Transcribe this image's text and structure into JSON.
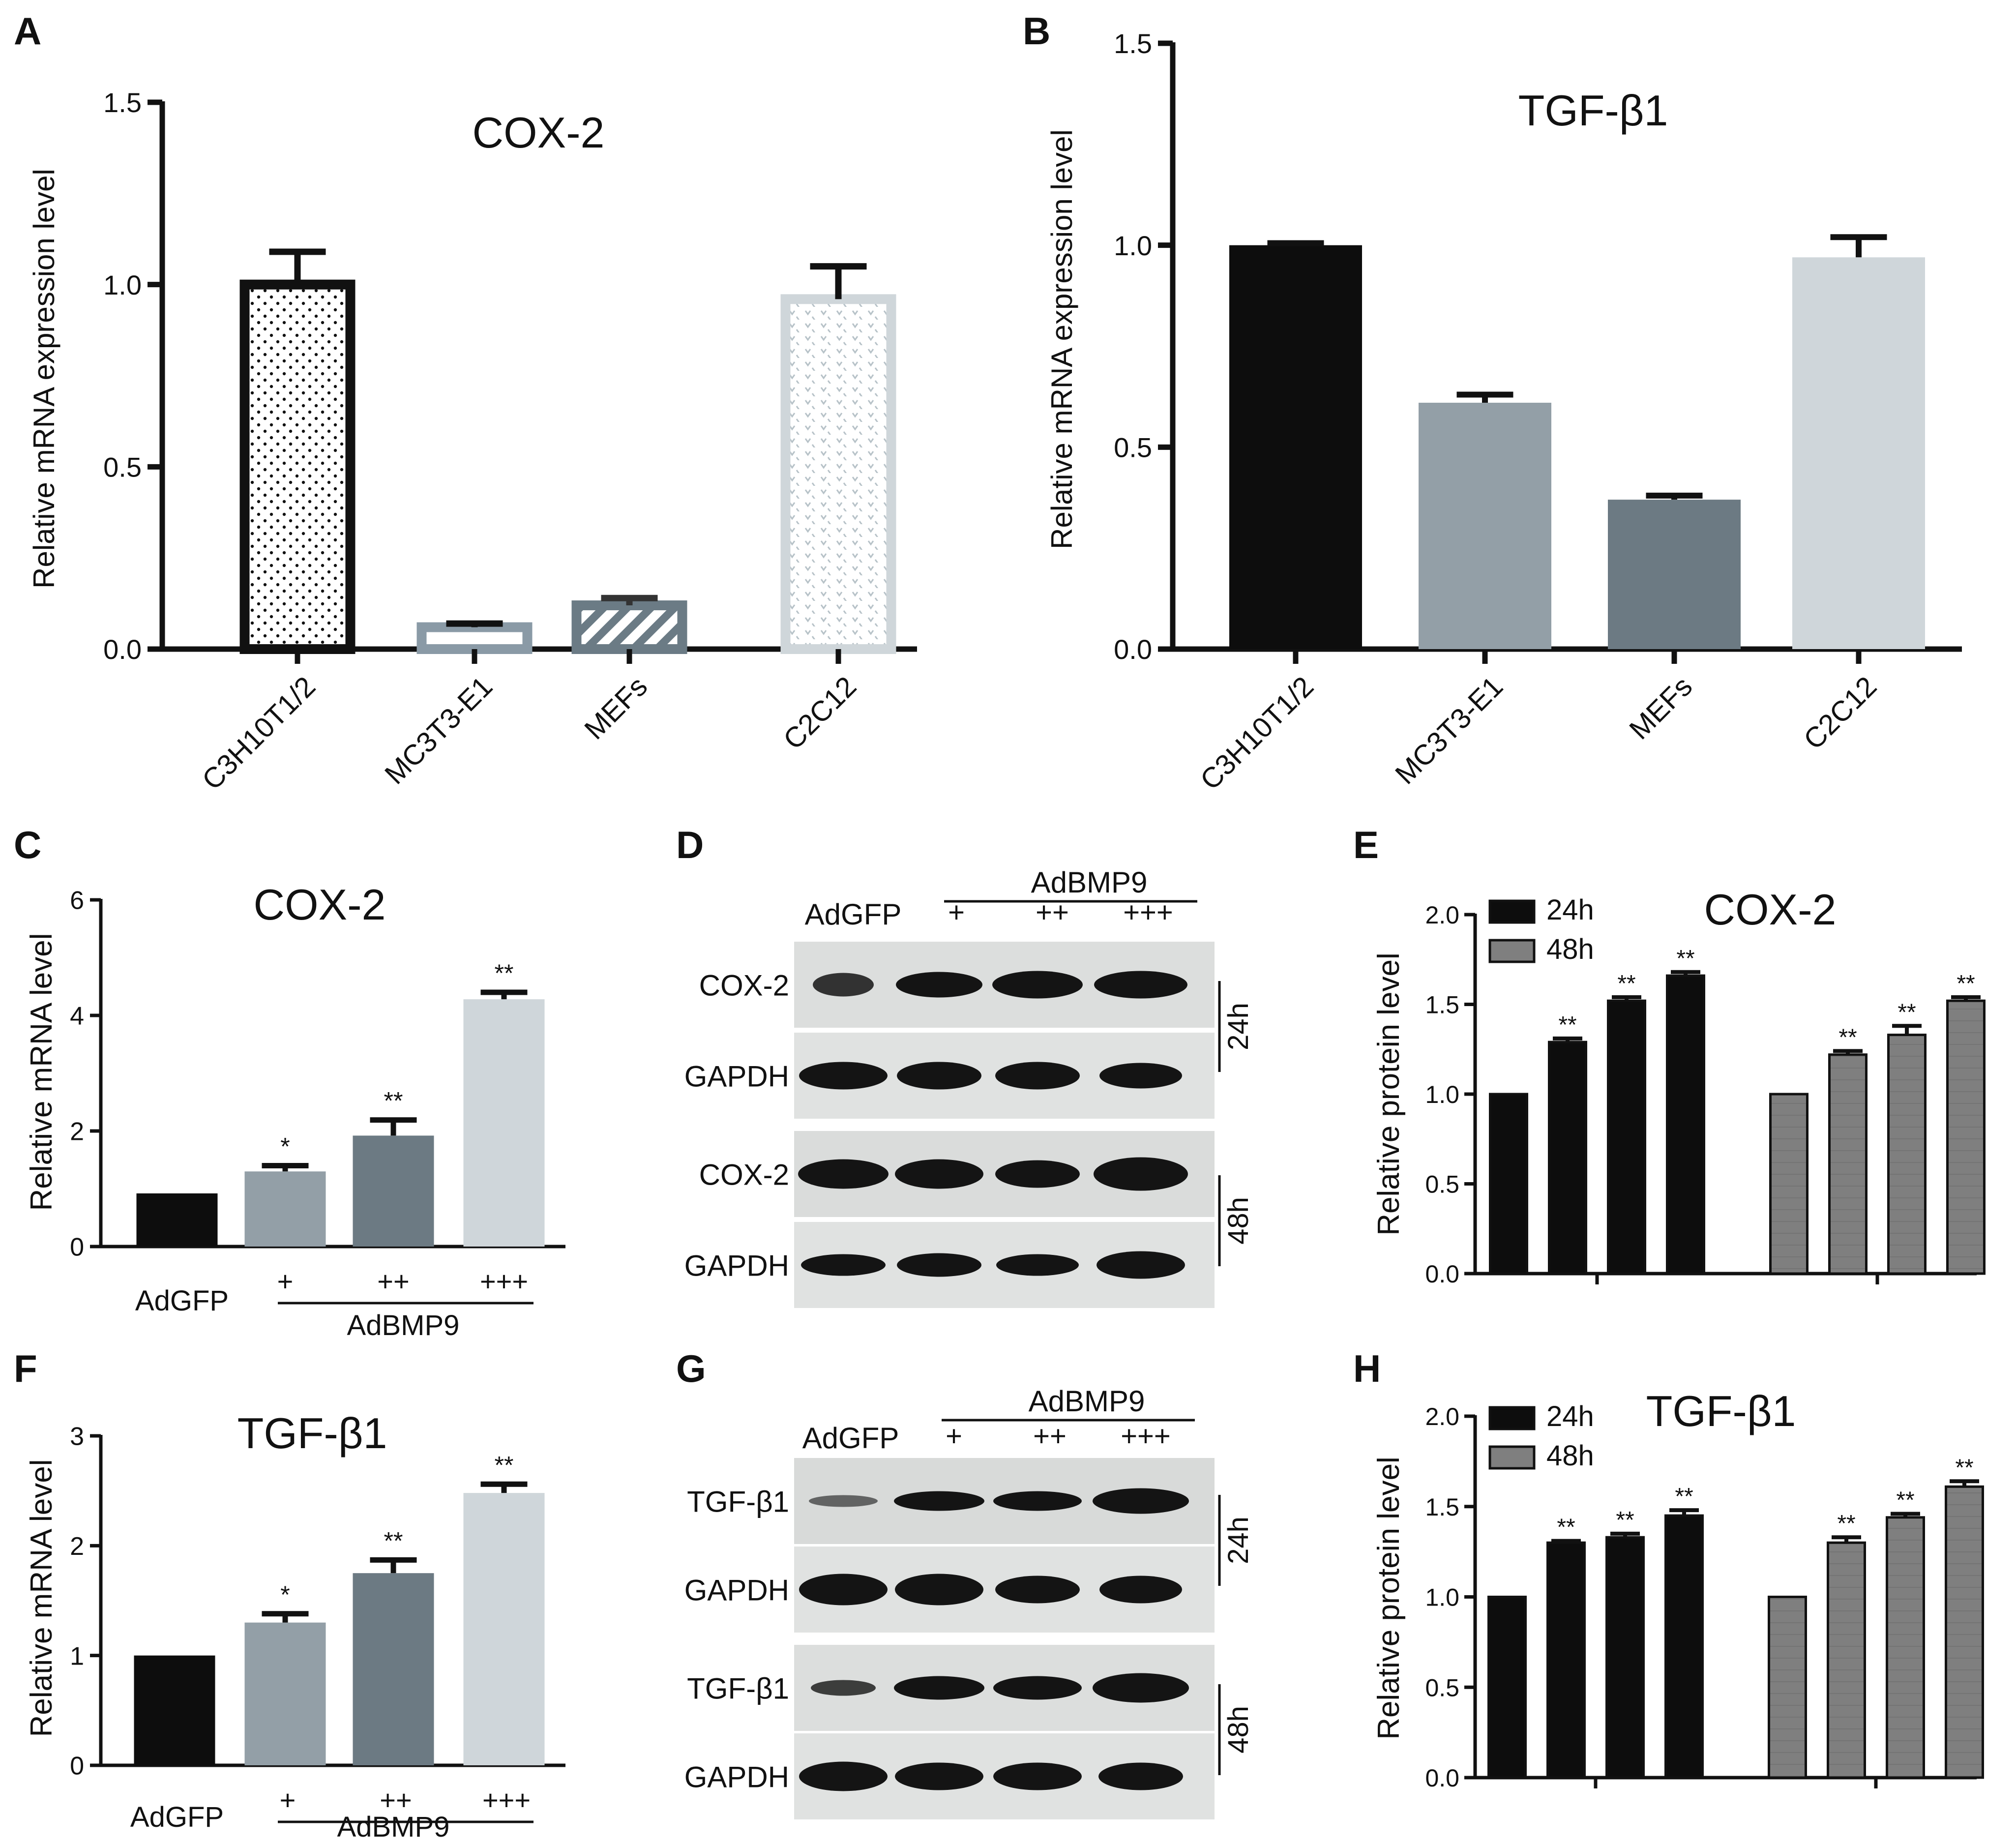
{
  "panels": {
    "A": {
      "letter": "A",
      "title": "COX-2",
      "ylabel": "Relative mRNA expression level",
      "yticks": [
        "0.0",
        "0.5",
        "1.0",
        "1.5"
      ]
    },
    "B": {
      "letter": "B",
      "title": "TGF-β1",
      "ylabel": "Relative mRNA expression level",
      "yticks": [
        "0.0",
        "0.5",
        "1.0",
        "1.5"
      ]
    },
    "C": {
      "letter": "C",
      "title": "COX-2",
      "ylabel": "Relative mRNA level",
      "yticks": [
        "0",
        "2",
        "4",
        "6"
      ],
      "group_label": "AdBMP9",
      "control_label": "AdGFP",
      "dose_labels": [
        "+",
        "++",
        "+++"
      ]
    },
    "D": {
      "letter": "D",
      "control_label": "AdGFP",
      "group_label": "AdBMP9",
      "dose_labels": [
        "+",
        "++",
        "+++"
      ],
      "rows": [
        "COX-2",
        "GAPDH",
        "COX-2",
        "GAPDH"
      ],
      "timepoints": [
        "24h",
        "48h"
      ]
    },
    "E": {
      "letter": "E",
      "title": "COX-2",
      "ylabel": "Relative protein level",
      "yticks": [
        "0.0",
        "0.5",
        "1.0",
        "1.5",
        "2.0"
      ],
      "legend": [
        "24h",
        "48h"
      ]
    },
    "F": {
      "letter": "F",
      "title": "TGF-β1",
      "ylabel": "Relative mRNA level",
      "yticks": [
        "0",
        "1",
        "2",
        "3"
      ],
      "group_label": "AdBMP9",
      "control_label": "AdGFP",
      "dose_labels": [
        "+",
        "++",
        "+++"
      ]
    },
    "G": {
      "letter": "G",
      "control_label": "AdGFP",
      "group_label": "AdBMP9",
      "dose_labels": [
        "+",
        "++",
        "+++"
      ],
      "rows": [
        "TGF-β1",
        "GAPDH",
        "TGF-β1",
        "GAPDH"
      ],
      "timepoints": [
        "24h",
        "48h"
      ]
    },
    "H": {
      "letter": "H",
      "title": "TGF-β1",
      "ylabel": "Relative protein level",
      "yticks": [
        "0.0",
        "0.5",
        "1.0",
        "1.5",
        "2.0"
      ],
      "legend": [
        "24h",
        "48h"
      ]
    }
  },
  "chart_data": [
    {
      "panel": "A",
      "type": "bar",
      "title": "COX-2",
      "ylabel": "Relative mRNA expression level",
      "categories": [
        "C3H10T1/2",
        "MC3T3-E1",
        "MEFs",
        "C2C12"
      ],
      "values": [
        1.0,
        0.06,
        0.12,
        0.96
      ],
      "errors": [
        0.09,
        0.01,
        0.02,
        0.09
      ],
      "ylim": [
        0,
        1.5
      ],
      "colors": [
        "#111111",
        "#8a9aa6",
        "#6b7b85",
        "#cfd6da"
      ]
    },
    {
      "panel": "B",
      "type": "bar",
      "title": "TGF-β1",
      "ylabel": "Relative mRNA expression level",
      "categories": [
        "C3H10T1/2",
        "MC3T3-E1",
        "MEFs",
        "C2C12"
      ],
      "values": [
        1.0,
        0.61,
        0.37,
        0.97
      ],
      "errors": [
        0.005,
        0.02,
        0.01,
        0.05
      ],
      "ylim": [
        0,
        1.5
      ],
      "colors": [
        "#0d0d0d",
        "#939fa7",
        "#6c7a83",
        "#cfd6da"
      ]
    },
    {
      "panel": "C",
      "type": "bar",
      "title": "COX-2",
      "ylabel": "Relative mRNA level",
      "categories": [
        "AdGFP",
        "+",
        "++",
        "+++"
      ],
      "values": [
        0.92,
        1.3,
        1.92,
        4.28
      ],
      "errors": [
        0.0,
        0.1,
        0.27,
        0.12
      ],
      "significance": [
        "",
        "*",
        "**",
        "**"
      ],
      "ylim": [
        0,
        6
      ],
      "colors": [
        "#0d0d0d",
        "#939fa7",
        "#6c7a83",
        "#cfd6da"
      ]
    },
    {
      "panel": "E",
      "type": "bar",
      "title": "COX-2",
      "ylabel": "Relative protein level",
      "series": [
        {
          "name": "24h",
          "values": [
            1.0,
            1.29,
            1.52,
            1.66
          ],
          "errors": [
            0.0,
            0.02,
            0.02,
            0.02
          ],
          "significance": [
            "",
            "**",
            "**",
            "**"
          ]
        },
        {
          "name": "48h",
          "values": [
            1.0,
            1.22,
            1.33,
            1.52
          ],
          "errors": [
            0.0,
            0.02,
            0.05,
            0.02
          ],
          "significance": [
            "",
            "**",
            "**",
            "**"
          ]
        }
      ],
      "ylim": [
        0,
        2
      ],
      "colors": [
        "#0d0d0d",
        "#7f7f7f"
      ]
    },
    {
      "panel": "F",
      "type": "bar",
      "title": "TGF-β1",
      "ylabel": "Relative mRNA level",
      "categories": [
        "AdGFP",
        "+",
        "++",
        "+++"
      ],
      "values": [
        1.0,
        1.3,
        1.75,
        2.48
      ],
      "errors": [
        0.0,
        0.08,
        0.12,
        0.08
      ],
      "significance": [
        "",
        "*",
        "**",
        "**"
      ],
      "ylim": [
        0,
        3
      ],
      "colors": [
        "#0d0d0d",
        "#939fa7",
        "#6c7a83",
        "#cfd6da"
      ]
    },
    {
      "panel": "H",
      "type": "bar",
      "title": "TGF-β1",
      "ylabel": "Relative protein level",
      "series": [
        {
          "name": "24h",
          "values": [
            1.0,
            1.3,
            1.33,
            1.45
          ],
          "errors": [
            0.0,
            0.01,
            0.02,
            0.03
          ],
          "significance": [
            "",
            "**",
            "**",
            "**"
          ]
        },
        {
          "name": "48h",
          "values": [
            1.0,
            1.3,
            1.44,
            1.61
          ],
          "errors": [
            0.0,
            0.03,
            0.02,
            0.03
          ],
          "significance": [
            "",
            "**",
            "**",
            "**"
          ]
        }
      ],
      "ylim": [
        0,
        2
      ],
      "colors": [
        "#0d0d0d",
        "#7f7f7f"
      ]
    }
  ]
}
